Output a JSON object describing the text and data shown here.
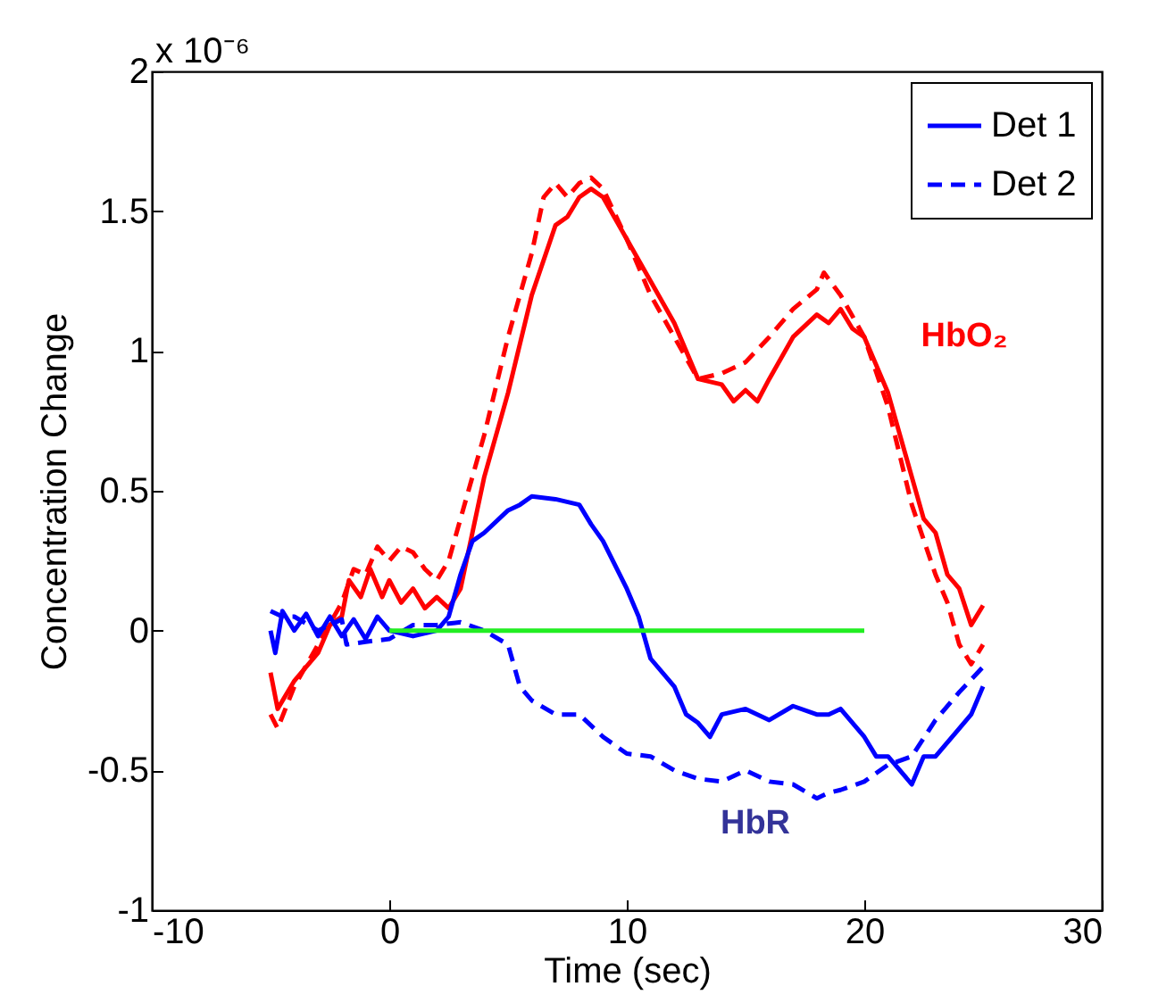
{
  "chart_data": {
    "type": "line",
    "xlabel": "Time (sec)",
    "ylabel": "Concentration Change",
    "annotations": [
      "x 10⁻⁶",
      "HbO₂",
      "HbR"
    ],
    "xlim": [
      -10,
      30
    ],
    "xticks": [
      -10,
      0,
      10,
      20,
      30
    ],
    "ylim": [
      -1,
      2
    ],
    "yticks": [
      -1,
      -0.5,
      0,
      0.5,
      1,
      1.5,
      2
    ],
    "legend": "top right",
    "grid": false,
    "series": [
      {
        "color": "#ff0000",
        "line_style": "solid",
        "x": [
          -5,
          -4.7,
          -4,
          -3,
          -2.5,
          -2,
          -1.7,
          -1.2,
          -0.8,
          -0.3,
          0,
          0.5,
          1,
          1.5,
          2,
          2.5,
          3,
          3.5,
          4,
          5,
          6,
          7,
          7.5,
          8,
          8.5,
          9,
          10,
          11,
          12,
          13,
          14,
          14.5,
          15,
          15.5,
          16,
          17,
          18,
          18.5,
          19,
          19.5,
          20,
          21,
          21.5,
          22,
          22.5,
          23,
          23.5,
          24,
          24.5,
          25
        ],
        "values": [
          -0.15,
          -0.28,
          -0.18,
          -0.08,
          0.02,
          0.05,
          0.18,
          0.12,
          0.22,
          0.12,
          0.18,
          0.1,
          0.15,
          0.08,
          0.12,
          0.08,
          0.15,
          0.35,
          0.55,
          0.85,
          1.2,
          1.45,
          1.48,
          1.55,
          1.58,
          1.55,
          1.4,
          1.25,
          1.1,
          0.9,
          0.88,
          0.82,
          0.86,
          0.82,
          0.9,
          1.05,
          1.13,
          1.1,
          1.15,
          1.08,
          1.05,
          0.85,
          0.7,
          0.55,
          0.4,
          0.35,
          0.2,
          0.15,
          0.02,
          0.09
        ]
      },
      {
        "color": "#ff0000",
        "line_style": "dashed",
        "x": [
          -5,
          -4.7,
          -4,
          -3,
          -2,
          -1.5,
          -1,
          -0.5,
          0,
          0.5,
          1,
          1.5,
          2,
          2.5,
          3,
          4,
          5,
          6,
          6.5,
          7,
          7.5,
          8,
          8.5,
          9,
          10,
          11,
          12,
          13,
          14,
          15,
          16,
          17,
          18,
          18.3,
          19,
          20,
          21,
          22,
          23,
          23.5,
          24,
          24.5,
          25
        ],
        "values": [
          -0.3,
          -0.35,
          -0.2,
          -0.05,
          0.1,
          0.22,
          0.2,
          0.3,
          0.25,
          0.3,
          0.28,
          0.22,
          0.18,
          0.25,
          0.4,
          0.7,
          1.05,
          1.35,
          1.55,
          1.6,
          1.55,
          1.6,
          1.62,
          1.58,
          1.4,
          1.2,
          1.05,
          0.9,
          0.92,
          0.96,
          1.05,
          1.15,
          1.22,
          1.28,
          1.2,
          1.05,
          0.8,
          0.45,
          0.2,
          0.1,
          -0.05,
          -0.12,
          -0.05
        ]
      },
      {
        "name": "Det 1",
        "color": "#0000ff",
        "line_style": "solid",
        "x": [
          -5,
          -4.8,
          -4.5,
          -4,
          -3.5,
          -3,
          -2.5,
          -2,
          -1.5,
          -1,
          -0.5,
          0,
          1,
          2,
          2.5,
          3,
          3.5,
          4,
          5,
          5.5,
          6,
          7,
          8,
          8.5,
          9,
          10,
          10.5,
          11,
          12,
          12.5,
          13,
          13.5,
          14,
          15,
          16,
          17,
          18,
          18.5,
          19,
          20,
          20.5,
          21,
          22,
          22.5,
          23,
          24,
          24.5,
          25
        ],
        "values": [
          0,
          -0.08,
          0.07,
          0,
          0.06,
          -0.02,
          0.05,
          -0.02,
          0.04,
          -0.03,
          0.05,
          0,
          -0.02,
          0,
          0.05,
          0.2,
          0.32,
          0.35,
          0.43,
          0.45,
          0.48,
          0.47,
          0.45,
          0.38,
          0.32,
          0.15,
          0.05,
          -0.1,
          -0.2,
          -0.3,
          -0.33,
          -0.38,
          -0.3,
          -0.28,
          -0.32,
          -0.27,
          -0.3,
          -0.3,
          -0.28,
          -0.38,
          -0.45,
          -0.45,
          -0.55,
          -0.45,
          -0.45,
          -0.35,
          -0.3,
          -0.2
        ]
      },
      {
        "name": "Det 2",
        "color": "#0000ff",
        "line_style": "dashed",
        "x": [
          -5,
          -4.5,
          -4,
          -3,
          -2,
          -1.8,
          -1,
          0,
          1,
          2,
          3,
          4,
          5,
          5.5,
          6,
          7,
          8,
          9,
          10,
          11,
          12,
          13,
          14,
          15,
          16,
          17,
          18,
          18.5,
          19,
          20,
          21,
          22,
          23,
          24,
          25
        ],
        "values": [
          0.07,
          0.05,
          0.05,
          0,
          0.04,
          -0.05,
          -0.04,
          -0.03,
          0.02,
          0.02,
          0.03,
          0,
          -0.05,
          -0.2,
          -0.25,
          -0.3,
          -0.3,
          -0.38,
          -0.44,
          -0.45,
          -0.5,
          -0.53,
          -0.54,
          -0.5,
          -0.54,
          -0.55,
          -0.6,
          -0.58,
          -0.57,
          -0.54,
          -0.48,
          -0.45,
          -0.32,
          -0.22,
          -0.13
        ]
      },
      {
        "color": "#22ee22",
        "line_style": "solid",
        "x": [
          0,
          20
        ],
        "values": [
          0,
          0
        ]
      }
    ]
  }
}
